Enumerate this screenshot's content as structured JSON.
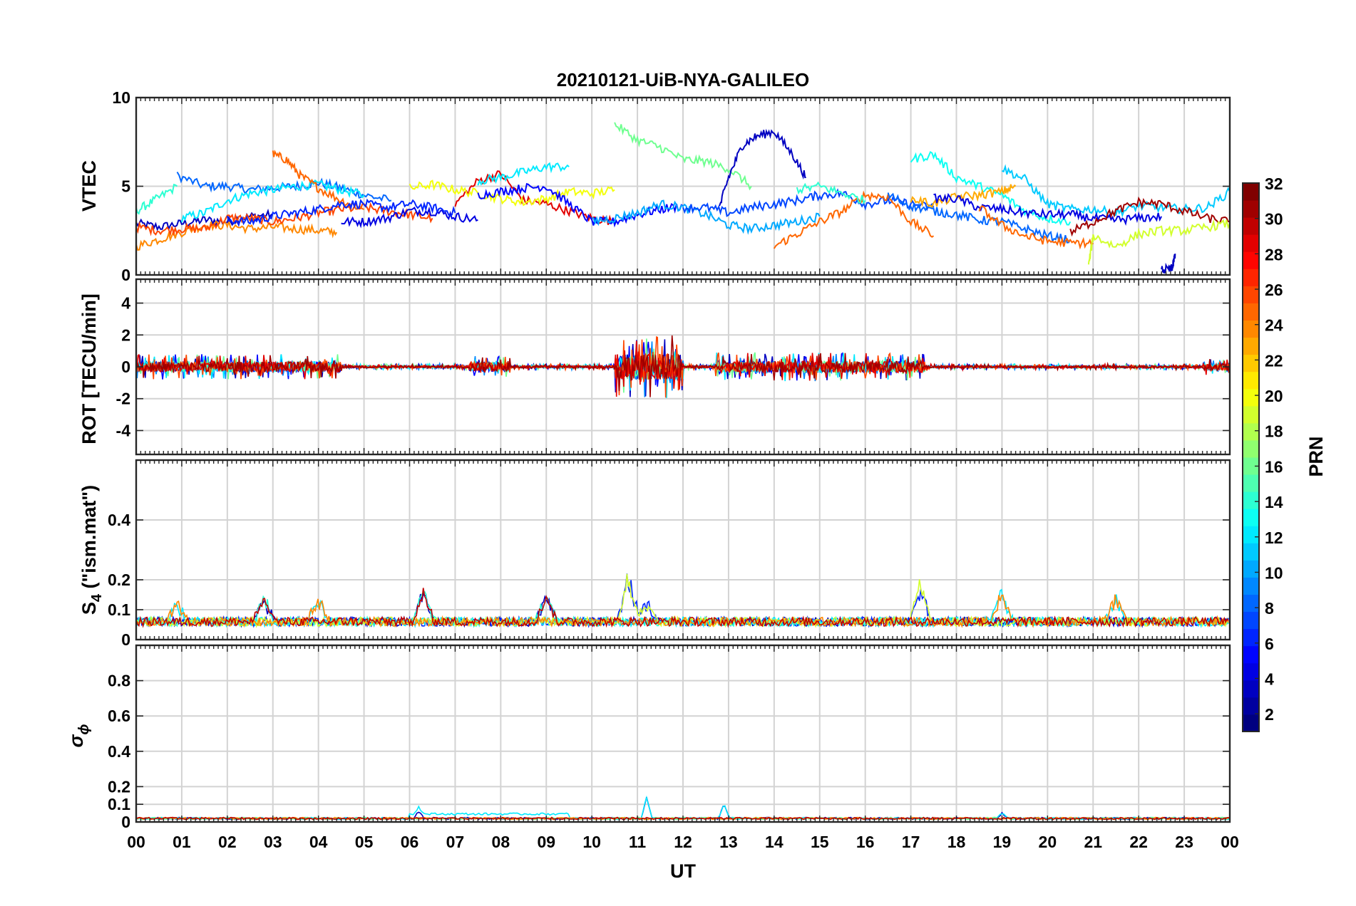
{
  "chart_data": {
    "type": "line",
    "title": "20210121-UiB-NYA-GALILEO",
    "xlabel": "UT",
    "x_ticks": [
      "00",
      "01",
      "02",
      "03",
      "04",
      "05",
      "06",
      "07",
      "08",
      "09",
      "10",
      "11",
      "12",
      "13",
      "14",
      "15",
      "16",
      "17",
      "18",
      "19",
      "20",
      "21",
      "22",
      "23",
      "00"
    ],
    "x_range_hours": [
      0,
      24
    ],
    "grid": true,
    "colorbar": {
      "label": "PRN",
      "colormap": "jet",
      "range": [
        1,
        32
      ],
      "ticks": [
        2,
        4,
        6,
        8,
        10,
        12,
        14,
        16,
        18,
        20,
        22,
        24,
        26,
        28,
        30,
        32
      ],
      "tick_labels": [
        "2",
        "4",
        "6",
        "8",
        "10",
        "12",
        "14",
        "16",
        "18",
        "20",
        "22",
        "24",
        "26",
        "28",
        "30",
        "32"
      ]
    },
    "panels": [
      {
        "name": "vtec",
        "ylabel": "VTEC",
        "ylim": [
          0,
          10
        ],
        "y_ticks": [
          0,
          5,
          10
        ],
        "y_tick_labels": [
          "0",
          "5",
          "10"
        ],
        "series": [
          {
            "prn": 3,
            "x": [
              0.0,
              0.5,
              1.0,
              1.5,
              2.0,
              2.5,
              3.0
            ],
            "y": [
              2.9,
              2.7,
              2.9,
              3.1,
              3.0,
              3.3,
              3.4
            ]
          },
          {
            "prn": 8,
            "x": [
              0.9,
              1.5,
              2.0,
              2.5,
              3.0,
              3.5,
              4.0,
              4.5,
              5.0,
              5.6
            ],
            "y": [
              5.6,
              5.0,
              5.0,
              4.8,
              4.9,
              5.0,
              5.2,
              4.9,
              4.5,
              4.2
            ]
          },
          {
            "prn": 14,
            "x": [
              0.0,
              0.4,
              0.9
            ],
            "y": [
              3.6,
              4.2,
              5.0
            ]
          },
          {
            "prn": 12,
            "x": [
              1.0,
              1.5,
              2.0,
              2.5,
              3.0,
              3.5,
              4.0,
              4.5,
              5.0
            ],
            "y": [
              3.2,
              3.5,
              4.2,
              4.6,
              4.8,
              5.0,
              5.1,
              4.8,
              4.5
            ]
          },
          {
            "prn": 24,
            "x": [
              0.0,
              0.5,
              1.0,
              1.5,
              2.0,
              2.5,
              3.0,
              3.5,
              4.0,
              4.4
            ],
            "y": [
              1.6,
              2.0,
              2.4,
              2.8,
              2.8,
              2.6,
              2.7,
              2.6,
              2.5,
              2.4
            ]
          },
          {
            "prn": 26,
            "x": [
              0.0,
              0.5,
              1.0,
              1.5,
              2.0,
              2.5,
              3.0,
              3.5,
              4.0,
              4.5,
              5.0,
              5.5,
              6.0,
              6.5
            ],
            "y": [
              2.7,
              2.5,
              2.6,
              2.6,
              3.2,
              3.2,
              3.0,
              3.2,
              3.5,
              3.7,
              3.8,
              3.6,
              3.4,
              3.2
            ]
          },
          {
            "prn": 25,
            "x": [
              3.0,
              3.3,
              3.6,
              4.0,
              4.5,
              5.0
            ],
            "y": [
              6.8,
              6.5,
              5.6,
              4.9,
              4.2,
              3.7
            ]
          },
          {
            "prn": 4,
            "x": [
              4.5,
              5.0,
              5.5,
              6.0,
              6.5,
              7.0,
              7.5
            ],
            "y": [
              3.0,
              3.0,
              3.2,
              3.6,
              3.6,
              3.3,
              3.1
            ]
          },
          {
            "prn": 6,
            "x": [
              2.0,
              2.5,
              3.0,
              3.5,
              4.0,
              4.5,
              5.0,
              5.5,
              6.0,
              6.5,
              7.0
            ],
            "y": [
              3.1,
              3.0,
              3.3,
              3.5,
              3.7,
              4.0,
              4.0,
              3.8,
              4.0,
              3.8,
              3.5
            ]
          },
          {
            "prn": 29,
            "x": [
              7.0,
              7.5,
              8.0,
              8.5,
              9.0,
              9.5,
              10.0,
              10.5
            ],
            "y": [
              4.0,
              5.3,
              5.7,
              4.2,
              4.0,
              3.6,
              3.2,
              3.0
            ]
          },
          {
            "prn": 12,
            "x": [
              7.5,
              8.0,
              8.5,
              9.0,
              9.5
            ],
            "y": [
              5.3,
              5.5,
              5.8,
              6.1,
              6.1
            ]
          },
          {
            "prn": 20,
            "x": [
              6.0,
              6.5,
              7.0,
              7.5,
              8.0,
              8.5,
              9.0,
              9.5,
              10.0,
              10.5
            ],
            "y": [
              4.9,
              5.1,
              4.8,
              4.6,
              4.3,
              4.1,
              4.3,
              4.7,
              4.6,
              4.8
            ]
          },
          {
            "prn": 5,
            "x": [
              7.5,
              8.0,
              8.5,
              9.0,
              9.5,
              10.0,
              10.5,
              11.0,
              11.5,
              12.0
            ],
            "y": [
              4.5,
              4.7,
              4.9,
              5.0,
              4.0,
              3.0,
              3.0,
              3.4,
              3.7,
              3.9
            ]
          },
          {
            "prn": 16,
            "x": [
              10.5,
              11.0,
              11.5,
              12.0,
              12.5,
              13.0,
              13.5
            ],
            "y": [
              8.5,
              7.6,
              7.2,
              6.5,
              6.4,
              6.0,
              5.0
            ]
          },
          {
            "prn": 3,
            "x": [
              12.8,
              13.0,
              13.3,
              13.6,
              14.0,
              14.4,
              14.7
            ],
            "y": [
              3.8,
              5.5,
              7.3,
              7.8,
              8.1,
              6.8,
              5.5
            ]
          },
          {
            "prn": 10,
            "x": [
              10.0,
              10.5,
              11.0,
              11.5,
              12.0,
              12.5,
              13.0,
              13.5,
              14.0,
              14.5,
              15.0
            ],
            "y": [
              3.0,
              3.2,
              3.5,
              4.0,
              3.8,
              3.4,
              2.8,
              2.6,
              2.8,
              3.0,
              3.3
            ]
          },
          {
            "prn": 7,
            "x": [
              12.0,
              12.5,
              13.0,
              13.5,
              14.0,
              14.5,
              15.0,
              15.5,
              16.0,
              16.5,
              17.0,
              17.5
            ],
            "y": [
              3.8,
              3.8,
              3.5,
              3.8,
              4.0,
              4.2,
              4.5,
              4.6,
              4.0,
              4.2,
              4.0,
              3.8
            ]
          },
          {
            "prn": 25,
            "x": [
              14.0,
              14.5,
              15.0,
              15.5,
              16.0,
              16.5,
              17.0,
              17.5
            ],
            "y": [
              1.6,
              2.3,
              3.0,
              3.6,
              4.5,
              4.4,
              3.0,
              2.2
            ]
          },
          {
            "prn": 13,
            "x": [
              17.0,
              17.5,
              18.0,
              18.5,
              19.0,
              19.5,
              20.0,
              20.5
            ],
            "y": [
              6.5,
              6.8,
              5.5,
              5.0,
              4.5,
              3.6,
              3.2,
              3.0
            ]
          },
          {
            "prn": 11,
            "x": [
              19.0,
              19.5,
              20.0,
              20.5,
              21.0,
              21.5,
              22.0,
              22.5,
              23.0,
              23.5,
              24.0
            ],
            "y": [
              6.0,
              5.4,
              4.0,
              3.7,
              3.7,
              3.5,
              3.9,
              3.8,
              3.7,
              3.8,
              4.7
            ]
          },
          {
            "prn": 23,
            "x": [
              17.0,
              17.5,
              18.0,
              18.5,
              19.0,
              19.3
            ],
            "y": [
              4.3,
              4.0,
              4.4,
              4.5,
              4.7,
              5.0
            ]
          },
          {
            "prn": 8,
            "x": [
              16.5,
              17.0,
              17.5,
              18.0,
              18.5,
              19.0,
              19.5,
              20.0,
              20.5
            ],
            "y": [
              4.5,
              3.9,
              3.6,
              3.4,
              3.1,
              3.0,
              2.6,
              2.2,
              2.0
            ]
          },
          {
            "prn": 4,
            "x": [
              17.5,
              18.0,
              18.5,
              19.0,
              19.5,
              20.0,
              20.5,
              21.0,
              21.5,
              22.0,
              22.5
            ],
            "y": [
              4.3,
              4.3,
              3.8,
              3.7,
              3.5,
              3.4,
              3.4,
              3.2,
              3.1,
              3.2,
              3.3
            ]
          },
          {
            "prn": 31,
            "x": [
              20.5,
              21.0,
              21.5,
              22.0,
              22.5,
              23.0,
              23.5,
              24.0
            ],
            "y": [
              2.4,
              3.0,
              3.6,
              4.1,
              4.0,
              3.6,
              3.2,
              3.0
            ]
          },
          {
            "prn": 25,
            "x": [
              18.5,
              19.0,
              19.5,
              20.0,
              20.5,
              21.0
            ],
            "y": [
              3.8,
              2.8,
              2.2,
              1.9,
              1.8,
              1.8
            ]
          },
          {
            "prn": 19,
            "x": [
              20.9,
              21.0,
              21.5,
              22.0,
              22.5,
              23.0,
              23.5,
              24.0
            ],
            "y": [
              0.5,
              2.2,
              1.6,
              2.3,
              2.5,
              2.5,
              2.7,
              2.9
            ]
          },
          {
            "prn": 3,
            "x": [
              22.5,
              22.7,
              22.75,
              22.8
            ],
            "y": [
              0.3,
              0.3,
              0.5,
              1.2
            ]
          },
          {
            "prn": 14,
            "x": [
              14.5,
              15.0,
              15.5,
              16.0
            ],
            "y": [
              4.8,
              5.0,
              4.6,
              4.2
            ]
          }
        ]
      },
      {
        "name": "rot",
        "ylabel": "ROT [TECU/min]",
        "ylim": [
          -5.5,
          5.5
        ],
        "y_ticks": [
          -4,
          -2,
          0,
          2,
          4
        ],
        "y_tick_labels": [
          "-4",
          "-2",
          "0",
          "2",
          "4"
        ],
        "baseline": 0,
        "bursts": [
          {
            "start": 0.0,
            "end": 4.5,
            "amp": 0.8
          },
          {
            "start": 7.3,
            "end": 8.2,
            "amp": 0.7
          },
          {
            "start": 10.5,
            "end": 12.0,
            "amp": 2.0
          },
          {
            "start": 12.7,
            "end": 17.3,
            "amp": 0.9
          },
          {
            "start": 23.4,
            "end": 24.0,
            "amp": 0.5
          }
        ]
      },
      {
        "name": "s4",
        "ylabel": "S_4 (\"ism.mat\")",
        "ylim": [
          0,
          0.6
        ],
        "y_ticks": [
          0,
          0.1,
          0.2,
          0.4
        ],
        "y_tick_labels": [
          "0",
          "0.1",
          "0.2",
          "0.4"
        ],
        "baseline": 0.06,
        "peaks": [
          {
            "x": 0.9,
            "y": 0.13
          },
          {
            "x": 2.8,
            "y": 0.15
          },
          {
            "x": 4.0,
            "y": 0.15
          },
          {
            "x": 6.3,
            "y": 0.17
          },
          {
            "x": 9.0,
            "y": 0.16
          },
          {
            "x": 10.8,
            "y": 0.24
          },
          {
            "x": 11.2,
            "y": 0.14
          },
          {
            "x": 17.2,
            "y": 0.2
          },
          {
            "x": 19.0,
            "y": 0.17
          },
          {
            "x": 21.5,
            "y": 0.15
          }
        ]
      },
      {
        "name": "sigma_phi",
        "ylabel": "σ_ϕ",
        "ylim": [
          0,
          1
        ],
        "y_ticks": [
          0,
          0.1,
          0.2,
          0.4,
          0.6,
          0.8
        ],
        "y_tick_labels": [
          "0",
          "0.1",
          "0.2",
          "0.4",
          "0.6",
          "0.8"
        ],
        "baseline": 0.02,
        "peaks": [
          {
            "x": 6.2,
            "y": 0.06
          },
          {
            "x": 11.2,
            "y": 0.14
          },
          {
            "x": 12.9,
            "y": 0.1
          },
          {
            "x": 19.0,
            "y": 0.05
          }
        ]
      }
    ]
  }
}
